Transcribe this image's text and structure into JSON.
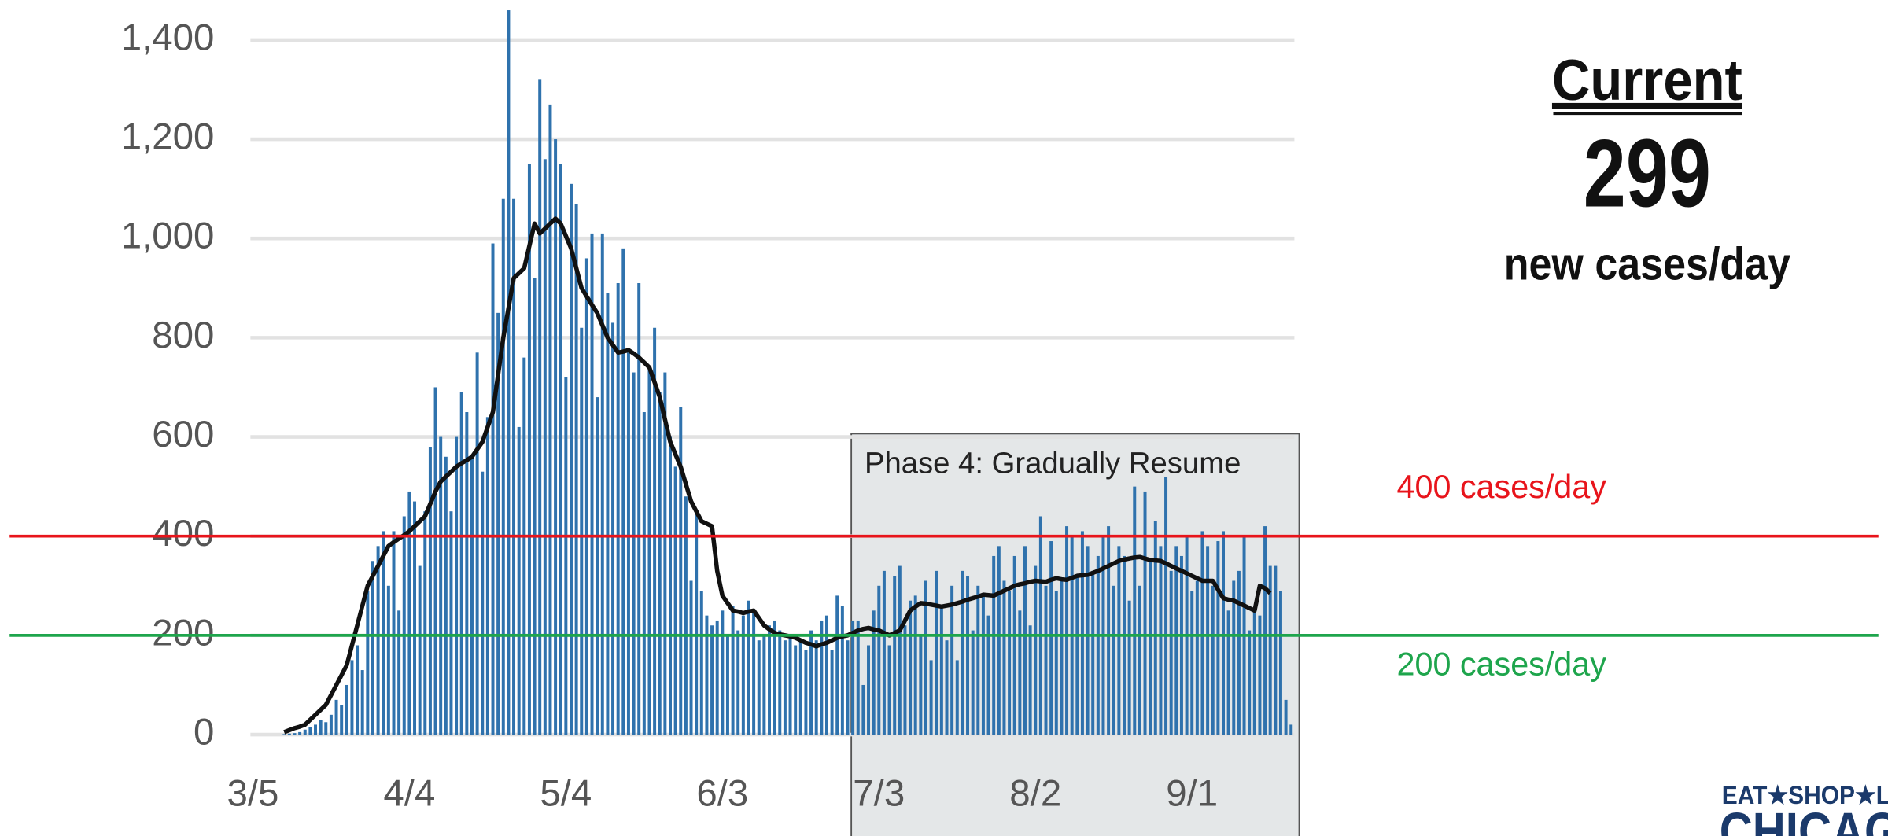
{
  "chart_data": {
    "type": "bar",
    "categories": [
      "3/5",
      null,
      null,
      null,
      null,
      null,
      null,
      null,
      null,
      null,
      null,
      null,
      null,
      null,
      null,
      null,
      null,
      null,
      null,
      null,
      null,
      null,
      null,
      null,
      null,
      null,
      null,
      null,
      null,
      null,
      "4/4",
      null,
      null,
      null,
      null,
      null,
      null,
      null,
      null,
      null,
      null,
      null,
      null,
      null,
      null,
      null,
      null,
      null,
      null,
      null,
      null,
      null,
      null,
      null,
      null,
      null,
      null,
      null,
      null,
      null,
      "5/4",
      null,
      null,
      null,
      null,
      null,
      null,
      null,
      null,
      null,
      null,
      null,
      null,
      null,
      null,
      null,
      null,
      null,
      null,
      null,
      null,
      null,
      null,
      null,
      null,
      null,
      null,
      null,
      null,
      null,
      "6/3",
      null,
      null,
      null,
      null,
      null,
      null,
      null,
      null,
      null,
      null,
      null,
      null,
      null,
      null,
      null,
      null,
      null,
      null,
      null,
      null,
      null,
      null,
      null,
      null,
      null,
      null,
      null,
      null,
      null,
      "7/3",
      null,
      null,
      null,
      null,
      null,
      null,
      null,
      null,
      null,
      null,
      null,
      null,
      null,
      null,
      null,
      null,
      null,
      null,
      null,
      null,
      null,
      null,
      null,
      null,
      null,
      null,
      null,
      null,
      null,
      "8/2",
      null,
      null,
      null,
      null,
      null,
      null,
      null,
      null,
      null,
      null,
      null,
      null,
      null,
      null,
      null,
      null,
      null,
      null,
      null,
      null,
      null,
      null,
      null,
      null,
      null,
      null,
      null,
      null,
      null,
      "9/1",
      null,
      null,
      null,
      null,
      null,
      null,
      null,
      null,
      null,
      null,
      null,
      null,
      null,
      null,
      null,
      null,
      null,
      null,
      null
    ],
    "series": [
      {
        "type": "bar",
        "color": "#2f72ad",
        "values": [
          0,
          0,
          0,
          0,
          0,
          0,
          1,
          2,
          3,
          5,
          10,
          15,
          20,
          30,
          25,
          40,
          70,
          60,
          100,
          150,
          180,
          130,
          290,
          350,
          380,
          410,
          300,
          410,
          250,
          440,
          490,
          470,
          340,
          450,
          580,
          700,
          600,
          560,
          450,
          600,
          690,
          650,
          560,
          770,
          530,
          640,
          990,
          850,
          1080,
          1460,
          1080,
          620,
          760,
          1150,
          920,
          1320,
          1160,
          1270,
          1200,
          1150,
          720,
          1110,
          1070,
          820,
          960,
          1010,
          680,
          1010,
          890,
          830,
          910,
          980,
          770,
          730,
          910,
          650,
          740,
          820,
          690,
          730,
          600,
          540,
          660,
          480,
          310,
          450,
          290,
          240,
          220,
          230,
          250,
          200,
          260,
          210,
          240,
          270,
          250,
          190,
          200,
          220,
          230,
          210,
          190,
          200,
          180,
          190,
          170,
          210,
          190,
          230,
          240,
          170,
          280,
          260,
          190,
          230,
          230,
          100,
          180,
          250,
          300,
          330,
          180,
          320,
          340,
          220,
          270,
          280,
          200,
          310,
          150,
          330,
          260,
          190,
          300,
          150,
          330,
          320,
          210,
          300,
          280,
          240,
          360,
          380,
          310,
          290,
          360,
          250,
          380,
          220,
          340,
          440,
          300,
          390,
          290,
          310,
          420,
          400,
          320,
          410,
          380,
          330,
          360,
          400,
          420,
          300,
          380,
          360,
          270,
          500,
          300,
          490,
          350,
          430,
          380,
          520,
          330,
          380,
          360,
          400,
          290,
          310,
          410,
          380,
          300,
          390,
          410,
          250,
          310,
          330,
          400,
          210,
          250,
          240,
          420,
          340,
          340,
          290,
          70,
          20
        ]
      },
      {
        "type": "line",
        "color": "#111111",
        "values": [
          null,
          null,
          null,
          null,
          null,
          null,
          5,
          9,
          13,
          16,
          20,
          30,
          40,
          50,
          60,
          80,
          100,
          120,
          140,
          180,
          220,
          260,
          300,
          320,
          340,
          360,
          380,
          388,
          395,
          402,
          410,
          420,
          430,
          440,
          465,
          490,
          510,
          520,
          530,
          540,
          547,
          553,
          560,
          575,
          590,
          620,
          650,
          725,
          800,
          860,
          920,
          930,
          940,
          985,
          1030,
          1010,
          1020,
          1030,
          1040,
          1030,
          1005,
          980,
          940,
          900,
          883,
          866,
          850,
          825,
          800,
          785,
          770,
          772,
          775,
          768,
          760,
          750,
          740,
          710,
          680,
          635,
          590,
          565,
          540,
          505,
          470,
          450,
          430,
          425,
          420,
          330,
          280,
          265,
          250,
          248,
          245,
          248,
          250,
          235,
          220,
          212,
          205,
          202,
          200,
          198,
          195,
          190,
          185,
          182,
          178,
          182,
          185,
          190,
          195,
          198,
          200,
          205,
          210,
          213,
          215,
          212,
          210,
          205,
          200,
          205,
          210,
          230,
          250,
          258,
          265,
          264,
          262,
          260,
          258,
          260,
          262,
          265,
          268,
          272,
          275,
          278,
          282,
          281,
          280,
          285,
          290,
          295,
          300,
          303,
          305,
          308,
          310,
          309,
          308,
          312,
          315,
          313,
          312,
          316,
          320,
          321,
          322,
          326,
          330,
          335,
          340,
          345,
          350,
          353,
          355,
          357,
          358,
          355,
          352,
          351,
          350,
          345,
          340,
          335,
          330,
          325,
          320,
          315,
          310,
          310,
          310,
          292,
          275,
          272,
          270,
          265,
          260,
          255,
          250,
          300,
          295,
          285,
          null,
          null,
          null,
          null
        ]
      }
    ],
    "ylim": [
      0,
      1400
    ],
    "yticks": [
      0,
      200,
      400,
      600,
      800,
      {
        "value": 1000,
        "label": "1,000"
      },
      {
        "value": 1200,
        "label": "1,200"
      },
      {
        "value": 1400,
        "label": "1,400"
      }
    ],
    "grid": true,
    "annotation": "Phase 4: Gradually Resume",
    "reference_lines": [
      {
        "value": 400,
        "label": "400 cases/day",
        "color": "#e8141b"
      },
      {
        "value": 200,
        "label": "200 cases/day",
        "color": "#1ea54c"
      }
    ]
  },
  "panel": {
    "heading": "Current",
    "number": "299",
    "unit": "new cases/day"
  },
  "logo": {
    "line1": "EAT★SHOP★L",
    "line2": "CHICAG"
  }
}
